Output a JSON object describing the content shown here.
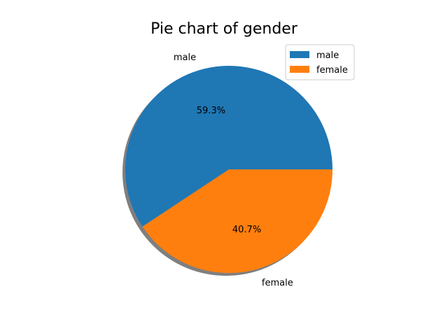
{
  "chart_data": {
    "type": "pie",
    "title": "Pie chart of gender",
    "categories": [
      "male",
      "female"
    ],
    "values": [
      59.3,
      40.7
    ],
    "autopct_labels": [
      "59.3%",
      "40.7%"
    ],
    "colors": [
      "#1f77b4",
      "#ff7f0e"
    ],
    "start_angle_deg": 0,
    "direction": "counterclockwise",
    "shadow": true,
    "legend": {
      "entries": [
        "male",
        "female"
      ],
      "placement": "upper right"
    }
  }
}
